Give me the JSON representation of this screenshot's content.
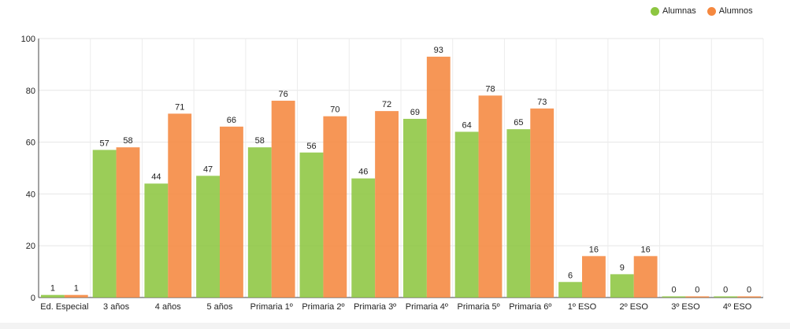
{
  "colors": {
    "alumnas": "#8dc641",
    "alumnos": "#f5883f"
  },
  "legend": {
    "alumnas_label": "Alumnas",
    "alumnos_label": "Alumnos"
  },
  "chart_data": {
    "type": "bar",
    "title": "",
    "xlabel": "",
    "ylabel": "",
    "ylim": [
      0,
      100
    ],
    "yticks": [
      0,
      20,
      40,
      60,
      80,
      100
    ],
    "grid": true,
    "legend_position": "top-right",
    "categories": [
      "Ed. Especial",
      "3 años",
      "4 años",
      "5 años",
      "Primaria 1º",
      "Primaria 2º",
      "Primaria 3º",
      "Primaria 4º",
      "Primaria 5º",
      "Primaria 6º",
      "1º ESO",
      "2º ESO",
      "3º ESO",
      "4º ESO"
    ],
    "series": [
      {
        "name": "Alumnas",
        "values": [
          1,
          57,
          44,
          47,
          58,
          56,
          46,
          69,
          64,
          65,
          6,
          9,
          0,
          0
        ]
      },
      {
        "name": "Alumnos",
        "values": [
          1,
          58,
          71,
          66,
          76,
          70,
          72,
          93,
          78,
          73,
          16,
          16,
          0,
          0
        ]
      }
    ]
  }
}
